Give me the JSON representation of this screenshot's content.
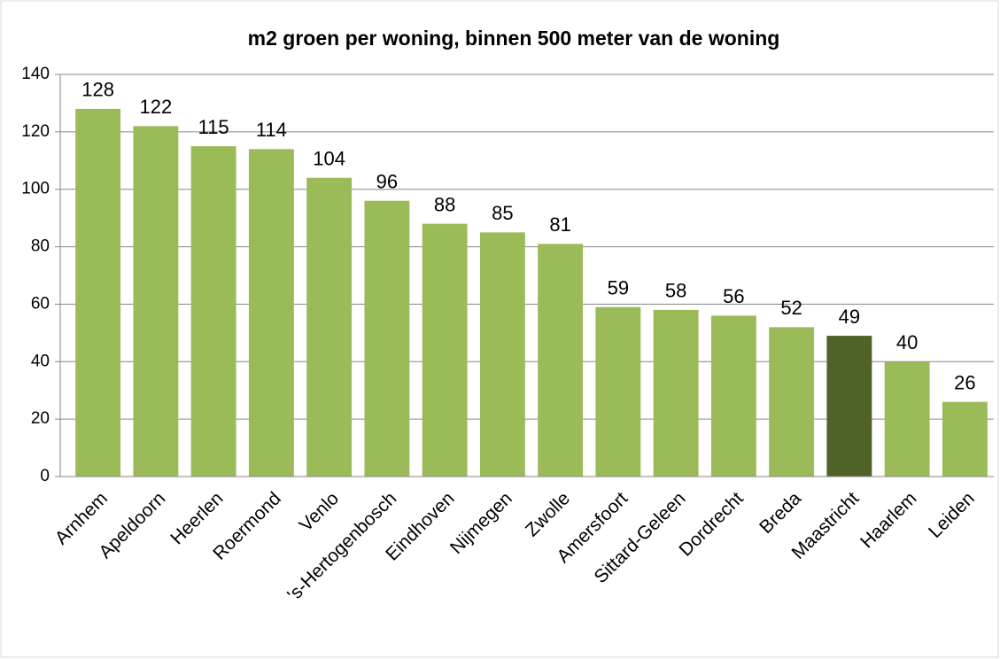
{
  "chart_data": {
    "type": "bar",
    "title": "m2 groen per woning, binnen 500 meter van de woning",
    "categories": [
      "Arnhem",
      "Apeldoorn",
      "Heerlen",
      "Roermond",
      "Venlo",
      "'s-Hertogenbosch",
      "Eindhoven",
      "Nijmegen",
      "Zwolle",
      "Amersfoort",
      "Sittard-Geleen",
      "Dordrecht",
      "Breda",
      "Maastricht",
      "Haarlem",
      "Leiden"
    ],
    "values": [
      128,
      122,
      115,
      114,
      104,
      96,
      88,
      85,
      81,
      59,
      58,
      56,
      52,
      49,
      40,
      26
    ],
    "colors": [
      "#9bbb59",
      "#9bbb59",
      "#9bbb59",
      "#9bbb59",
      "#9bbb59",
      "#9bbb59",
      "#9bbb59",
      "#9bbb59",
      "#9bbb59",
      "#9bbb59",
      "#9bbb59",
      "#9bbb59",
      "#9bbb59",
      "#4f6228",
      "#9bbb59",
      "#9bbb59"
    ],
    "ylim": [
      0,
      140
    ],
    "yticks": [
      0,
      20,
      40,
      60,
      80,
      100,
      120,
      140
    ],
    "grid": true
  }
}
